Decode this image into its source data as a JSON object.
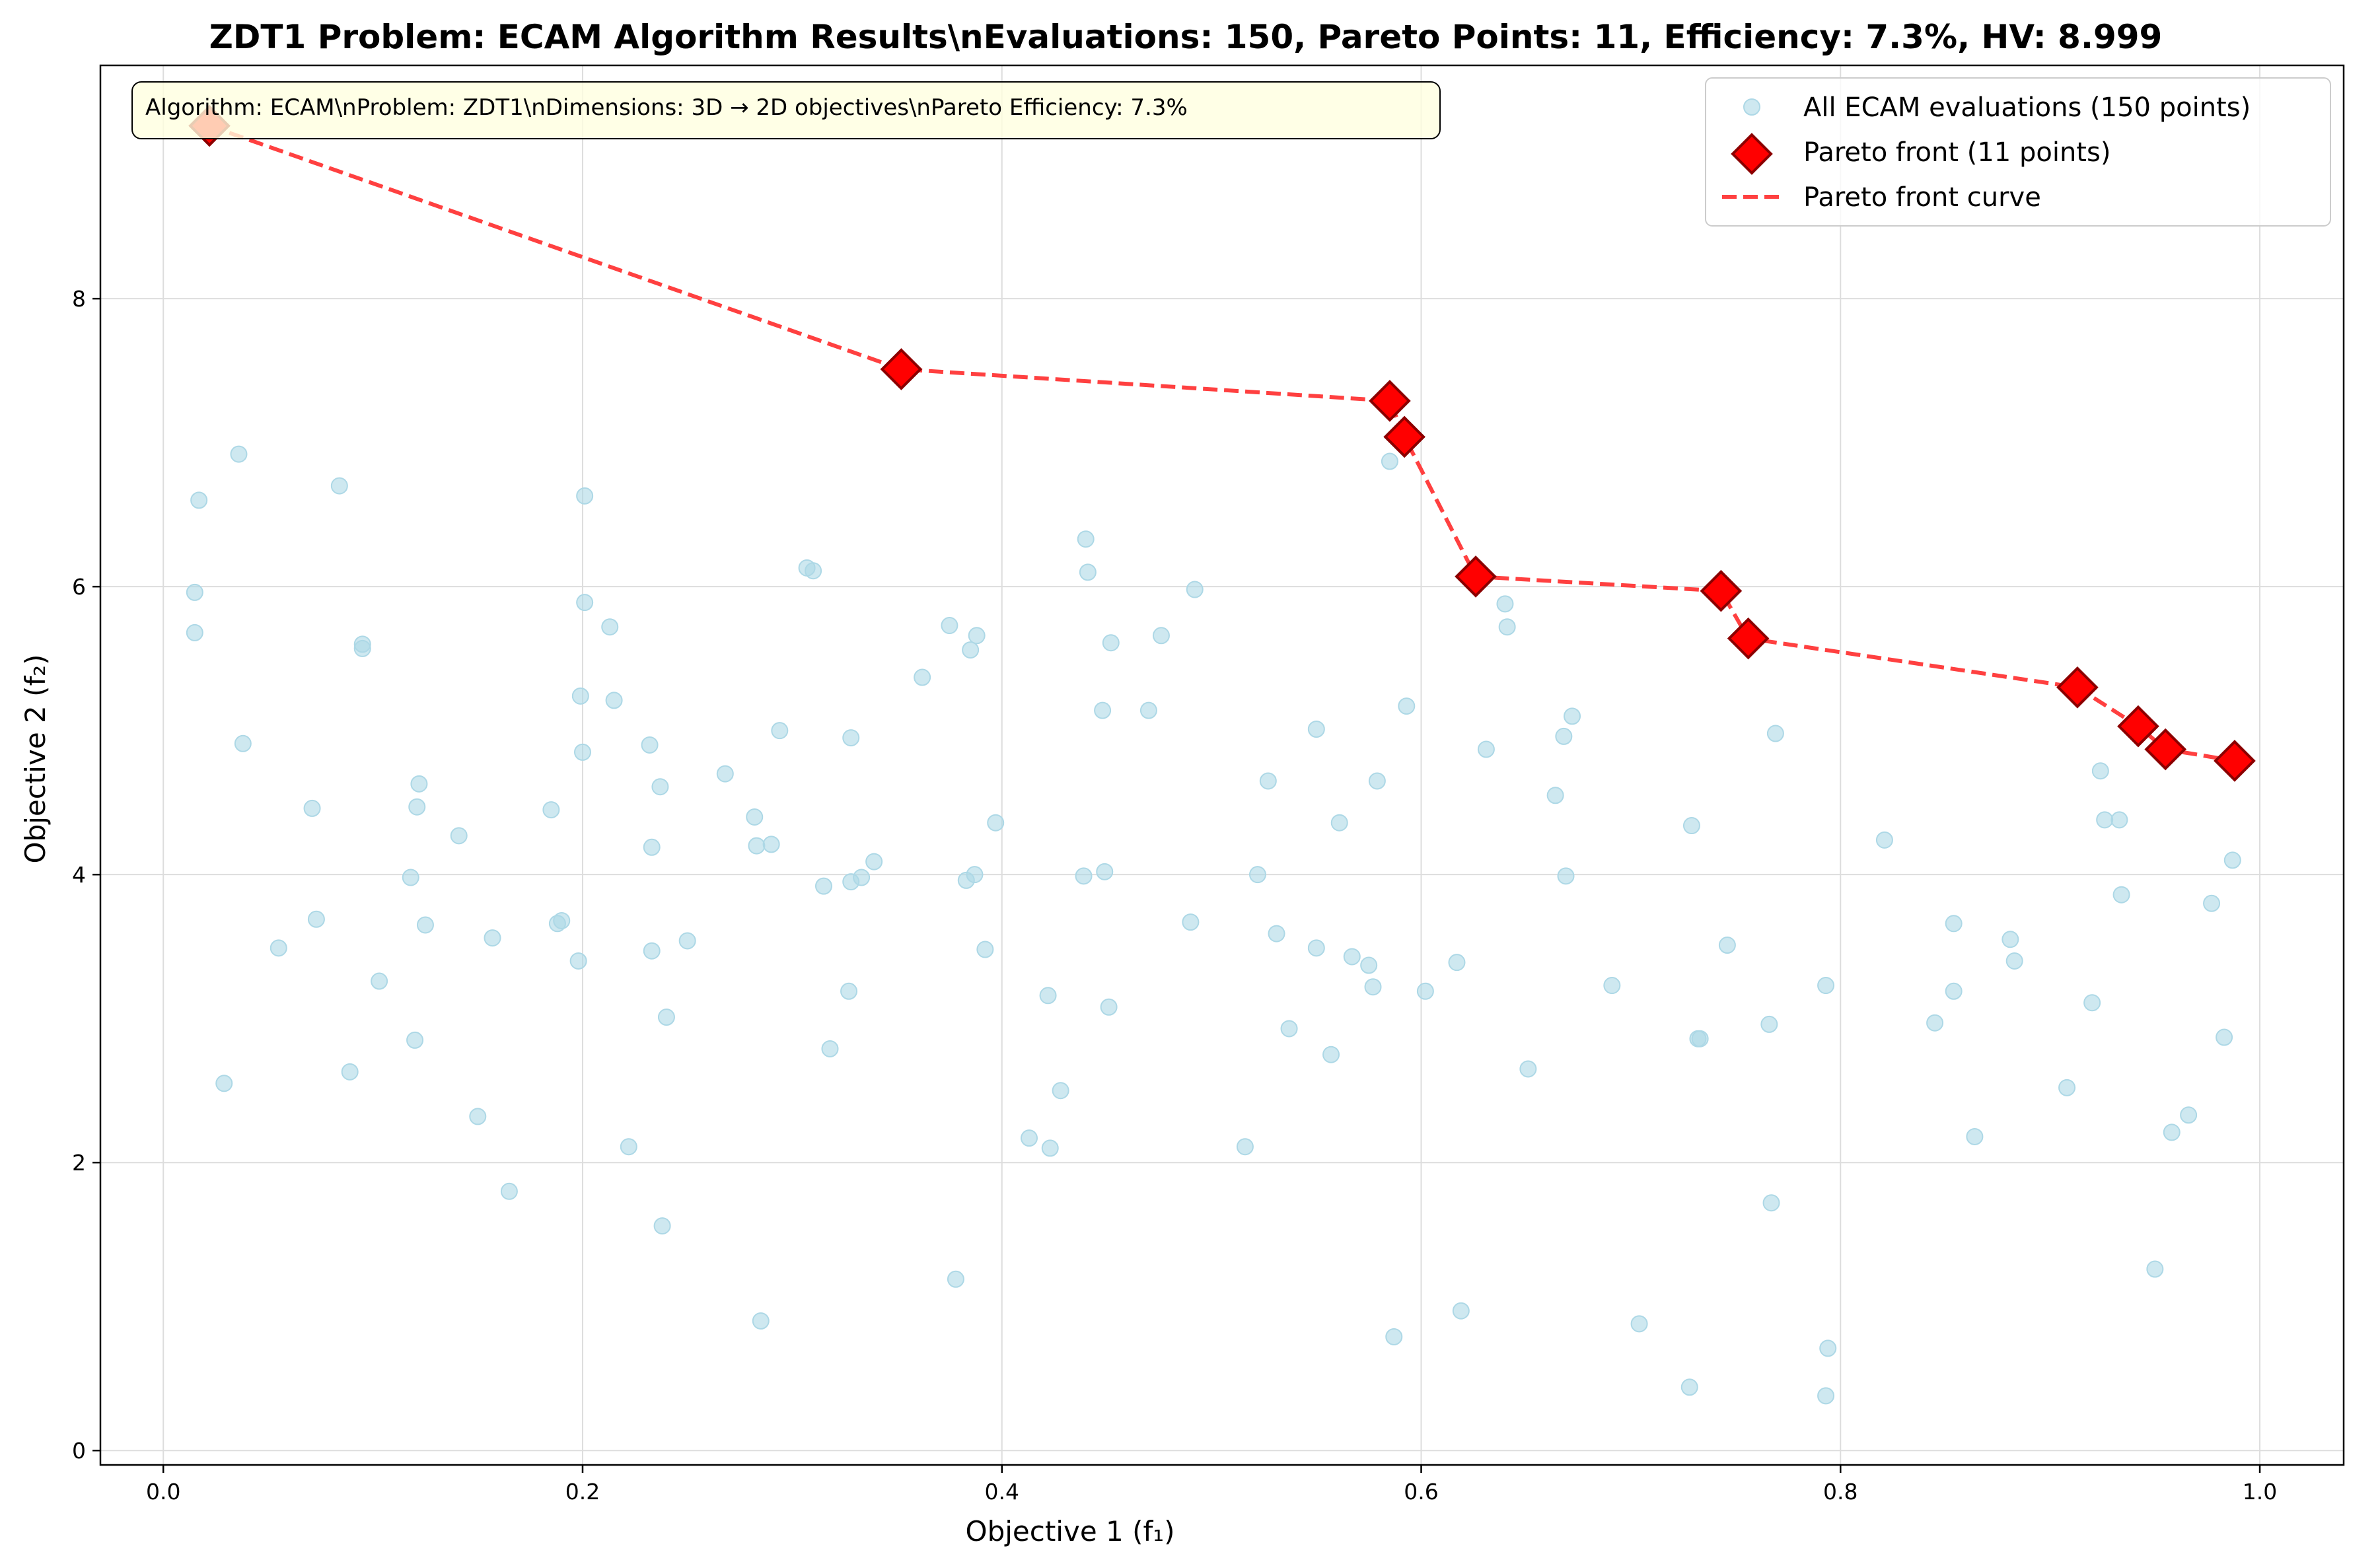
{
  "chart_data": {
    "type": "scatter",
    "title": "ZDT1 Problem: ECAM Algorithm Results\\nEvaluations: 150, Pareto Points: 11, Efficiency: 7.3%, HV: 8.999",
    "xlabel": "Objective 1 (f₁)",
    "ylabel": "Objective 2 (f₂)",
    "xlim": [
      -0.03,
      1.04
    ],
    "ylim": [
      -0.1,
      9.62
    ],
    "xticks": [
      0.0,
      0.2,
      0.4,
      0.6,
      0.8,
      1.0
    ],
    "xtick_labels": [
      "0.0",
      "0.2",
      "0.4",
      "0.6",
      "0.8",
      "1.0"
    ],
    "yticks": [
      0,
      2,
      4,
      6,
      8
    ],
    "ytick_labels": [
      "0",
      "2",
      "4",
      "6",
      "8"
    ],
    "grid": true,
    "legend_position": "top-right",
    "annotation": "Algorithm: ECAM\\nProblem: ZDT1\\nDimensions: 3D → 2D objectives\\nPareto Efficiency: 7.3%",
    "series": [
      {
        "name": "All ECAM evaluations (150 points)",
        "kind": "scatter",
        "color": "#add8e6",
        "points": [
          [
            0.017,
            6.6
          ],
          [
            0.036,
            6.92
          ],
          [
            0.015,
            5.96
          ],
          [
            0.015,
            5.68
          ],
          [
            0.038,
            4.91
          ],
          [
            0.084,
            6.7
          ],
          [
            0.095,
            5.6
          ],
          [
            0.095,
            5.57
          ],
          [
            0.071,
            4.46
          ],
          [
            0.055,
            3.49
          ],
          [
            0.073,
            3.69
          ],
          [
            0.103,
            3.26
          ],
          [
            0.029,
            2.55
          ],
          [
            0.089,
            2.63
          ],
          [
            0.12,
            2.85
          ],
          [
            0.118,
            3.98
          ],
          [
            0.121,
            4.47
          ],
          [
            0.122,
            4.63
          ],
          [
            0.125,
            3.65
          ],
          [
            0.141,
            4.27
          ],
          [
            0.15,
            2.32
          ],
          [
            0.157,
            3.56
          ],
          [
            0.165,
            1.8
          ],
          [
            0.185,
            4.45
          ],
          [
            0.188,
            3.66
          ],
          [
            0.19,
            3.68
          ],
          [
            0.198,
            3.4
          ],
          [
            0.199,
            5.24
          ],
          [
            0.2,
            4.85
          ],
          [
            0.201,
            6.63
          ],
          [
            0.201,
            5.89
          ],
          [
            0.213,
            5.72
          ],
          [
            0.215,
            5.21
          ],
          [
            0.222,
            2.11
          ],
          [
            0.232,
            4.9
          ],
          [
            0.233,
            4.19
          ],
          [
            0.233,
            3.47
          ],
          [
            0.237,
            4.61
          ],
          [
            0.238,
            1.56
          ],
          [
            0.24,
            3.01
          ],
          [
            0.25,
            3.54
          ],
          [
            0.268,
            4.7
          ],
          [
            0.282,
            4.4
          ],
          [
            0.283,
            4.2
          ],
          [
            0.285,
            0.9
          ],
          [
            0.29,
            4.21
          ],
          [
            0.294,
            5.0
          ],
          [
            0.307,
            6.13
          ],
          [
            0.31,
            6.11
          ],
          [
            0.315,
            3.92
          ],
          [
            0.318,
            2.79
          ],
          [
            0.327,
            3.19
          ],
          [
            0.328,
            4.95
          ],
          [
            0.328,
            3.95
          ],
          [
            0.333,
            3.98
          ],
          [
            0.339,
            4.09
          ],
          [
            0.362,
            5.37
          ],
          [
            0.375,
            5.73
          ],
          [
            0.378,
            1.19
          ],
          [
            0.383,
            3.96
          ],
          [
            0.385,
            5.56
          ],
          [
            0.387,
            4.0
          ],
          [
            0.388,
            5.66
          ],
          [
            0.392,
            3.48
          ],
          [
            0.397,
            4.36
          ],
          [
            0.413,
            2.17
          ],
          [
            0.422,
            3.16
          ],
          [
            0.423,
            2.1
          ],
          [
            0.428,
            2.5
          ],
          [
            0.439,
            3.99
          ],
          [
            0.44,
            6.33
          ],
          [
            0.441,
            6.1
          ],
          [
            0.448,
            5.14
          ],
          [
            0.449,
            4.02
          ],
          [
            0.451,
            3.08
          ],
          [
            0.452,
            5.61
          ],
          [
            0.47,
            5.14
          ],
          [
            0.476,
            5.66
          ],
          [
            0.49,
            3.67
          ],
          [
            0.492,
            5.98
          ],
          [
            0.516,
            2.11
          ],
          [
            0.522,
            4.0
          ],
          [
            0.527,
            4.65
          ],
          [
            0.531,
            3.59
          ],
          [
            0.537,
            2.93
          ],
          [
            0.55,
            5.01
          ],
          [
            0.55,
            3.49
          ],
          [
            0.557,
            2.75
          ],
          [
            0.561,
            4.36
          ],
          [
            0.567,
            3.43
          ],
          [
            0.575,
            3.37
          ],
          [
            0.577,
            3.22
          ],
          [
            0.579,
            4.65
          ],
          [
            0.585,
            6.87
          ],
          [
            0.587,
            0.79
          ],
          [
            0.593,
            5.17
          ],
          [
            0.602,
            3.19
          ],
          [
            0.617,
            3.39
          ],
          [
            0.619,
            0.97
          ],
          [
            0.631,
            4.87
          ],
          [
            0.64,
            5.88
          ],
          [
            0.641,
            5.72
          ],
          [
            0.651,
            2.65
          ],
          [
            0.664,
            4.55
          ],
          [
            0.668,
            4.96
          ],
          [
            0.669,
            3.99
          ],
          [
            0.672,
            5.1
          ],
          [
            0.691,
            3.23
          ],
          [
            0.704,
            0.88
          ],
          [
            0.728,
            0.44
          ],
          [
            0.729,
            4.34
          ],
          [
            0.732,
            2.86
          ],
          [
            0.733,
            2.86
          ],
          [
            0.746,
            3.51
          ],
          [
            0.766,
            2.96
          ],
          [
            0.767,
            1.72
          ],
          [
            0.769,
            4.98
          ],
          [
            0.793,
            3.23
          ],
          [
            0.793,
            0.38
          ],
          [
            0.794,
            0.71
          ],
          [
            0.821,
            4.24
          ],
          [
            0.845,
            2.97
          ],
          [
            0.854,
            3.66
          ],
          [
            0.854,
            3.19
          ],
          [
            0.864,
            2.18
          ],
          [
            0.881,
            3.55
          ],
          [
            0.883,
            3.4
          ],
          [
            0.908,
            2.52
          ],
          [
            0.92,
            3.11
          ],
          [
            0.924,
            4.72
          ],
          [
            0.926,
            4.38
          ],
          [
            0.933,
            4.38
          ],
          [
            0.934,
            3.86
          ],
          [
            0.95,
            1.26
          ],
          [
            0.958,
            2.21
          ],
          [
            0.966,
            2.33
          ],
          [
            0.977,
            3.8
          ],
          [
            0.983,
            2.87
          ],
          [
            0.987,
            4.1
          ]
        ]
      },
      {
        "name": "Pareto front (11 points)",
        "kind": "marker",
        "color": "#ff0000",
        "edge_color": "#8b0000",
        "points": [
          [
            0.022,
            9.2
          ],
          [
            0.352,
            7.51
          ],
          [
            0.585,
            7.29
          ],
          [
            0.592,
            7.04
          ],
          [
            0.626,
            6.07
          ],
          [
            0.743,
            5.97
          ],
          [
            0.756,
            5.64
          ],
          [
            0.913,
            5.3
          ],
          [
            0.942,
            5.03
          ],
          [
            0.955,
            4.87
          ],
          [
            0.988,
            4.79
          ]
        ]
      },
      {
        "name": "Pareto front curve",
        "kind": "dashed-line",
        "color": "#ff4040",
        "points": [
          [
            0.022,
            9.2
          ],
          [
            0.352,
            7.51
          ],
          [
            0.585,
            7.29
          ],
          [
            0.592,
            7.04
          ],
          [
            0.626,
            6.07
          ],
          [
            0.743,
            5.97
          ],
          [
            0.756,
            5.64
          ],
          [
            0.913,
            5.3
          ],
          [
            0.942,
            5.03
          ],
          [
            0.955,
            4.87
          ],
          [
            0.988,
            4.79
          ]
        ]
      }
    ]
  }
}
